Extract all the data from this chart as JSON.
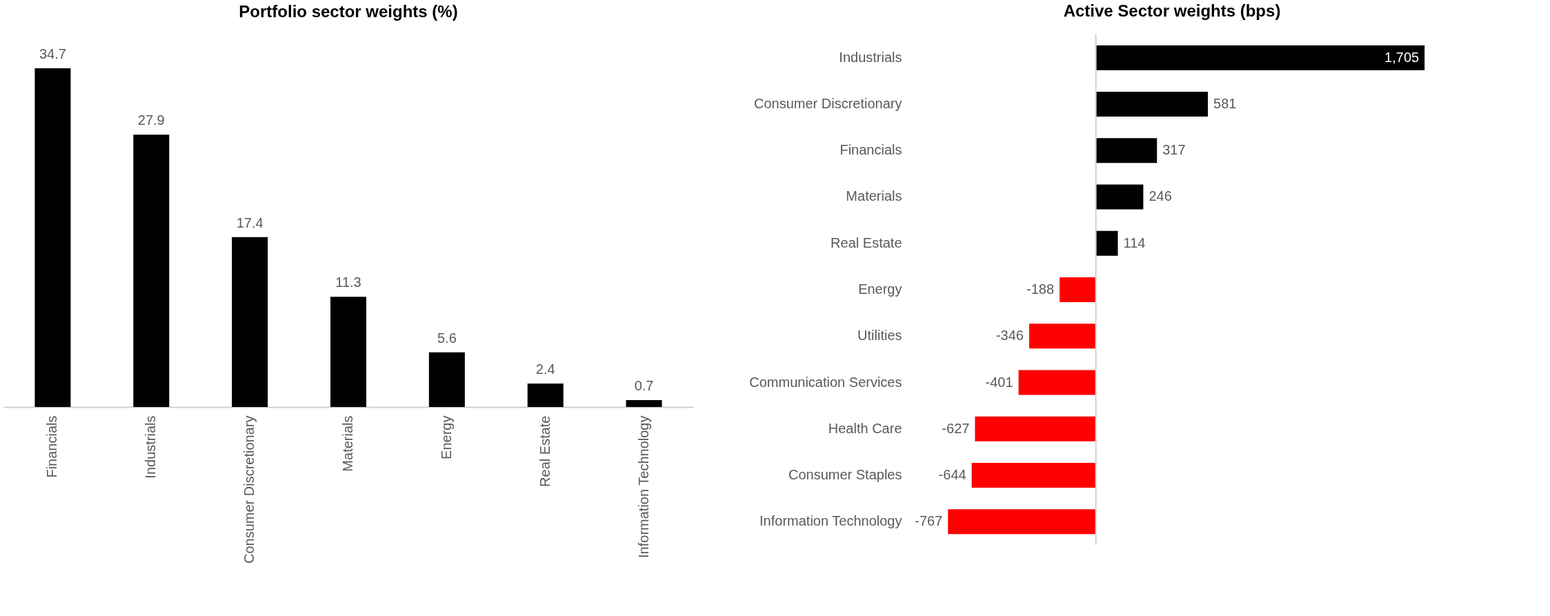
{
  "chart_data": [
    {
      "type": "bar",
      "title": "Portfolio sector weights (%)",
      "categories": [
        "Financials",
        "Industrials",
        "Consumer Discretionary",
        "Materials",
        "Energy",
        "Real Estate",
        "Information Technology"
      ],
      "values": [
        34.7,
        27.9,
        17.4,
        11.3,
        5.6,
        2.4,
        0.7
      ],
      "color": "#000000",
      "data_labels": true,
      "legend": false
    },
    {
      "type": "bar",
      "orientation": "horizontal",
      "title": "Active Sector weights (bps)",
      "categories": [
        "Industrials",
        "Consumer Discretionary",
        "Financials",
        "Materials",
        "Real Estate",
        "Energy",
        "Utilities",
        "Communication Services",
        "Health Care",
        "Consumer Staples",
        "Information Technology"
      ],
      "values": [
        1705,
        581,
        317,
        246,
        114,
        -188,
        -346,
        -401,
        -627,
        -644,
        -767
      ],
      "colors": [
        "#000000",
        "#000000",
        "#000000",
        "#000000",
        "#000000",
        "#ff0000",
        "#ff0000",
        "#ff0000",
        "#ff0000",
        "#ff0000",
        "#ff0000"
      ],
      "value_labels": [
        "1,705",
        "581",
        "317",
        "246",
        "114",
        "-188",
        "-346",
        "-401",
        "-627",
        "-644",
        "-767"
      ],
      "legend": false
    }
  ]
}
